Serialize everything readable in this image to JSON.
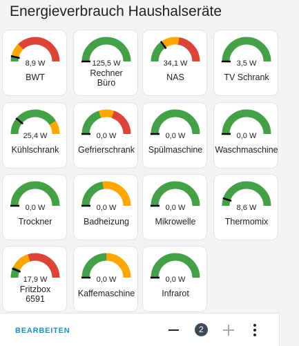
{
  "title": "Energieverbrauch Haushalseräte",
  "colors": {
    "green": "#43a047",
    "orange": "#ffa600",
    "red": "#db4437",
    "needle": "#000000"
  },
  "cards": [
    {
      "name": "BWT",
      "value": "8,9 W",
      "needle": 0.07,
      "segments": [
        "green",
        "orange",
        "red"
      ],
      "splits": [
        0.08,
        0.25
      ]
    },
    {
      "name": "Rechner Büro",
      "value": "125,5 W",
      "needle": 0.0,
      "segments": [
        "green"
      ],
      "splits": [],
      "two_line": true
    },
    {
      "name": "NAS",
      "value": "34,1 W",
      "needle": 0.3,
      "segments": [
        "green",
        "orange",
        "red"
      ],
      "splits": [
        0.3,
        0.55
      ]
    },
    {
      "name": "TV Schrank",
      "value": "3,5 W",
      "needle": 0.0,
      "segments": [
        "green"
      ],
      "splits": []
    },
    {
      "name": "Kühlschrank",
      "value": "25,4 W",
      "needle": 0.22,
      "segments": [
        "green",
        "orange"
      ],
      "splits": [
        0.82
      ]
    },
    {
      "name": "Gefrierschrank",
      "value": "0,0 W",
      "needle": 0.0,
      "segments": [
        "green",
        "orange",
        "red"
      ],
      "splits": [
        0.4,
        0.6
      ]
    },
    {
      "name": "Spülmaschine",
      "value": "0,0 W",
      "needle": 0.0,
      "segments": [
        "green"
      ],
      "splits": []
    },
    {
      "name": "Waschmaschine",
      "value": "0,0 W",
      "needle": 0.0,
      "segments": [
        "green"
      ],
      "splits": []
    },
    {
      "name": "Trockner",
      "value": "0,0 W",
      "needle": 0.0,
      "segments": [
        "green"
      ],
      "splits": []
    },
    {
      "name": "Badheizung",
      "value": "0,0 W",
      "needle": 0.0,
      "segments": [
        "green",
        "orange"
      ],
      "splits": [
        0.45
      ]
    },
    {
      "name": "Mikrowelle",
      "value": "0,0 W",
      "needle": 0.0,
      "segments": [
        "green"
      ],
      "splits": []
    },
    {
      "name": "Thermomix",
      "value": "8,6 W",
      "needle": 0.1,
      "segments": [
        "green"
      ],
      "splits": []
    },
    {
      "name": "Fritzbox 6591",
      "value": "17,9 W",
      "needle": 0.12,
      "segments": [
        "green",
        "orange",
        "red"
      ],
      "splits": [
        0.15,
        0.4
      ],
      "two_line": true
    },
    {
      "name": "Kaffemaschine",
      "value": "0,0 W",
      "needle": 0.0,
      "segments": [
        "green",
        "orange"
      ],
      "splits": [
        0.5
      ]
    },
    {
      "name": "Infrarot",
      "value": "0,0 W",
      "needle": 0.0,
      "segments": [
        "green"
      ],
      "splits": []
    }
  ],
  "footer": {
    "edit_label": "BEARBEITEN",
    "count": "2"
  }
}
